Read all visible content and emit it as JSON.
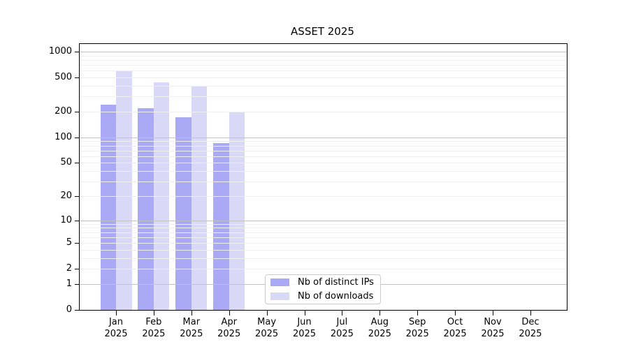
{
  "chart_data": {
    "type": "bar",
    "title": "ASSET 2025",
    "categories": [
      "Jan 2025",
      "Feb 2025",
      "Mar 2025",
      "Apr 2025",
      "May 2025",
      "Jun 2025",
      "Jul 2025",
      "Aug 2025",
      "Sep 2025",
      "Oct 2025",
      "Nov 2025",
      "Dec 2025"
    ],
    "series": [
      {
        "name": "Nb of distinct IPs",
        "color": "#a9a9f5",
        "values": [
          240,
          218,
          172,
          85,
          null,
          null,
          null,
          null,
          null,
          null,
          null,
          null
        ]
      },
      {
        "name": "Nb of downloads",
        "color": "#d9d9f7",
        "values": [
          600,
          440,
          390,
          200,
          null,
          null,
          null,
          null,
          null,
          null,
          null,
          null
        ]
      }
    ],
    "yscale": "log1p",
    "ytick_labels": [
      "1000",
      "500",
      "200",
      "100",
      "50",
      "20",
      "10",
      "5",
      "2",
      "1",
      "0"
    ],
    "ytick_values": [
      1000,
      500,
      200,
      100,
      50,
      20,
      10,
      5,
      2,
      1,
      0
    ],
    "ylim": [
      0,
      1230
    ],
    "grid": true,
    "legend_position": "lower center",
    "colors": {
      "major_gridline": "#c3c3c3",
      "minor_gridline": "#efefef",
      "spine": "#000000",
      "text": "#000000",
      "background": "#ffffff"
    }
  }
}
